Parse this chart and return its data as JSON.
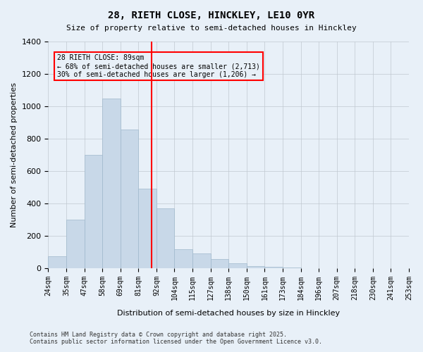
{
  "title": "28, RIETH CLOSE, HINCKLEY, LE10 0YR",
  "subtitle": "Size of property relative to semi-detached houses in Hinckley",
  "xlabel": "Distribution of semi-detached houses by size in Hinckley",
  "ylabel": "Number of semi-detached properties",
  "property_size": 89,
  "property_label": "28 RIETH CLOSE: 89sqm",
  "smaller_pct": 68,
  "smaller_count": 2713,
  "larger_pct": 30,
  "larger_count": 1206,
  "annotation_line1": "28 RIETH CLOSE: 89sqm",
  "annotation_line2": "← 68% of semi-detached houses are smaller (2,713)",
  "annotation_line3": "30% of semi-detached houses are larger (1,206) →",
  "footer_line1": "Contains HM Land Registry data © Crown copyright and database right 2025.",
  "footer_line2": "Contains public sector information licensed under the Open Government Licence v3.0.",
  "bins": [
    24,
    35,
    47,
    58,
    69,
    81,
    92,
    104,
    115,
    127,
    138,
    150,
    161,
    173,
    184,
    196,
    207,
    218,
    230,
    241,
    253
  ],
  "bin_labels": [
    "24sqm",
    "35sqm",
    "47sqm",
    "58sqm",
    "69sqm",
    "81sqm",
    "92sqm",
    "104sqm",
    "115sqm",
    "127sqm",
    "138sqm",
    "150sqm",
    "161sqm",
    "173sqm",
    "184sqm",
    "196sqm",
    "207sqm",
    "218sqm",
    "230sqm",
    "241sqm",
    "253sqm"
  ],
  "counts": [
    75,
    300,
    700,
    1050,
    855,
    490,
    370,
    120,
    90,
    55,
    30,
    15,
    10,
    5,
    2,
    0,
    0,
    0,
    0,
    0
  ],
  "bar_color": "#c8d8e8",
  "bar_edge_color": "#a0b8cc",
  "vline_color": "red",
  "ylim": [
    0,
    1400
  ],
  "yticks": [
    0,
    200,
    400,
    600,
    800,
    1000,
    1200,
    1400
  ],
  "grid_color": "#c0c8d0",
  "bg_color": "#e8f0f8"
}
